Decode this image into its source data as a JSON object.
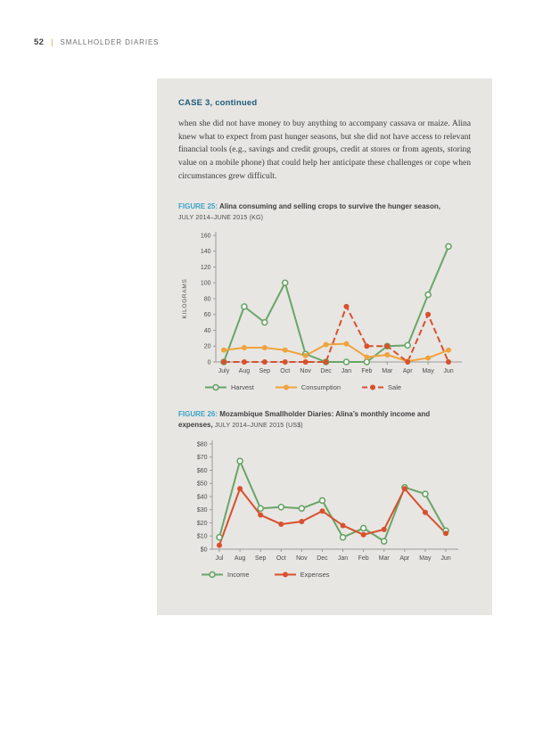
{
  "page": {
    "number": "52",
    "separator": "|",
    "header_title": "SMALLHOLDER DIARIES"
  },
  "case_panel": {
    "heading": "CASE 3, continued",
    "body": "when she did not have money to buy anything to accompany cassava or maize. Alina knew what to expect from past hunger seasons, but she did not have access to relevant financial tools (e.g., savings and credit groups, credit at stores or from agents, storing value on a mobile phone) that could help her anticipate these challenges or cope when circumstances grew difficult."
  },
  "figures": [
    {
      "label": "FIGURE 25:",
      "title": " Alina consuming and selling crops to survive the hunger season, ",
      "subtitle": "JULY 2014–JUNE 2015 (KG)"
    },
    {
      "label": "FIGURE 26:",
      "title": " Mozambique Smallholder Diaries: Alina’s monthly income and expenses, ",
      "subtitle": "JULY 2014–JUNE 2015 (US$)"
    }
  ],
  "colors": {
    "harvest_green": "#69A567",
    "consumption_orange": "#F0A33C",
    "sale_red": "#D8502D",
    "figure_label_blue": "#3BA2C8",
    "case_heading_blue": "#1E5B7A",
    "panel_background": "#E7E6E3",
    "axis_gray": "#9b9b99"
  },
  "chart_data": [
    {
      "type": "line",
      "title": "Alina consuming and selling crops to survive the hunger season, July 2014–June 2015 (kg)",
      "categories": [
        "July",
        "Aug",
        "Sep",
        "Oct",
        "Nov",
        "Dec",
        "Jan",
        "Feb",
        "Mar",
        "Apr",
        "May",
        "Jun"
      ],
      "series": [
        {
          "name": "Harvest",
          "color": "#69A567",
          "marker": "open",
          "dash": "solid",
          "values": [
            0,
            70,
            50,
            100,
            10,
            0,
            0,
            0,
            20,
            21,
            85,
            146
          ]
        },
        {
          "name": "Consumption",
          "color": "#F0A33C",
          "marker": "filled",
          "dash": "solid",
          "values": [
            15,
            18,
            18,
            15,
            8,
            22,
            23,
            6,
            9,
            1,
            5,
            15
          ]
        },
        {
          "name": "Sale",
          "color": "#D8502D",
          "marker": "filled",
          "dash": "dashed",
          "values": [
            0,
            0,
            0,
            0,
            0,
            0,
            70,
            20,
            20,
            0,
            60,
            0
          ]
        }
      ],
      "xlabel": "",
      "ylabel": "KILOGRAMS",
      "ylim": [
        0,
        160
      ],
      "ytick_step": 20,
      "ytick_prefix": "",
      "grid": false,
      "legend_position": "bottom"
    },
    {
      "type": "line",
      "title": "Mozambique Smallholder Diaries: Alina's monthly income and expenses, July 2014–June 2015 (US$)",
      "categories": [
        "Jul",
        "Aug",
        "Sep",
        "Oct",
        "Nov",
        "Dec",
        "Jan",
        "Feb",
        "Mar",
        "Apr",
        "May",
        "Jun"
      ],
      "series": [
        {
          "name": "Income",
          "color": "#69A567",
          "marker": "open",
          "dash": "solid",
          "values": [
            9,
            67,
            31,
            32,
            31,
            37,
            9,
            16,
            6,
            47,
            42,
            14
          ]
        },
        {
          "name": "Expenses",
          "color": "#D8502D",
          "marker": "filled",
          "dash": "solid",
          "values": [
            3,
            46,
            26,
            19,
            21,
            29,
            18,
            11,
            15,
            46,
            28,
            12
          ]
        }
      ],
      "xlabel": "",
      "ylabel": "",
      "ylim": [
        0,
        80
      ],
      "ytick_step": 10,
      "ytick_prefix": "$",
      "grid": false,
      "legend_position": "bottom"
    }
  ]
}
